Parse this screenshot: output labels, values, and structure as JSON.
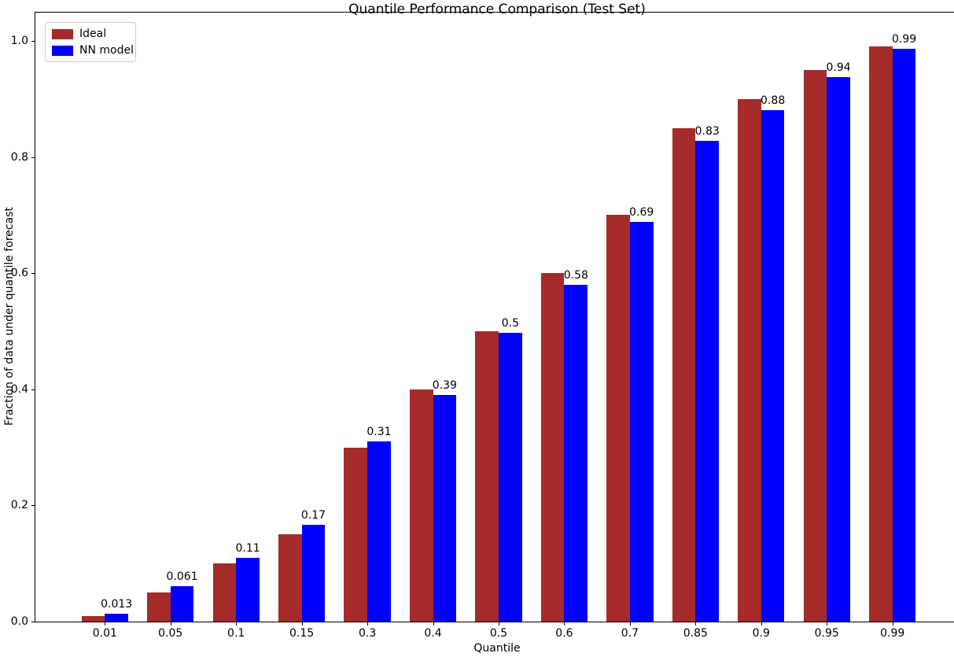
{
  "chart_data": {
    "type": "bar",
    "title": "Quantile Performance Comparison (Test Set)",
    "xlabel": "Quantile",
    "ylabel": "Fraction of data under quantile forecast",
    "categories": [
      "0.01",
      "0.05",
      "0.1",
      "0.15",
      "0.3",
      "0.4",
      "0.5",
      "0.6",
      "0.7",
      "0.85",
      "0.9",
      "0.95",
      "0.99"
    ],
    "series": [
      {
        "name": "Ideal",
        "color": "#A52A2A",
        "values": [
          0.01,
          0.05,
          0.1,
          0.15,
          0.3,
          0.4,
          0.5,
          0.6,
          0.7,
          0.85,
          0.9,
          0.95,
          0.99
        ]
      },
      {
        "name": "NN model",
        "color": "#0000FF",
        "values": [
          0.013,
          0.061,
          0.11,
          0.167,
          0.31,
          0.39,
          0.497,
          0.58,
          0.688,
          0.828,
          0.881,
          0.937,
          0.986
        ],
        "bar_labels": [
          "0.013",
          "0.061",
          "0.11",
          "0.17",
          "0.31",
          "0.39",
          "0.5",
          "0.58",
          "0.69",
          "0.83",
          "0.88",
          "0.94",
          "0.99"
        ]
      }
    ],
    "ylim": [
      0.0,
      1.05
    ],
    "yticks": [
      "0.0",
      "0.2",
      "0.4",
      "0.6",
      "0.8",
      "1.0"
    ],
    "grid": false,
    "legend": {
      "position": "upper left",
      "entries": [
        "Ideal",
        "NN model"
      ]
    },
    "colors": {
      "axes": "#000000",
      "text": "#000000",
      "background": "#ffffff",
      "legend_border": "#cccccc"
    }
  }
}
